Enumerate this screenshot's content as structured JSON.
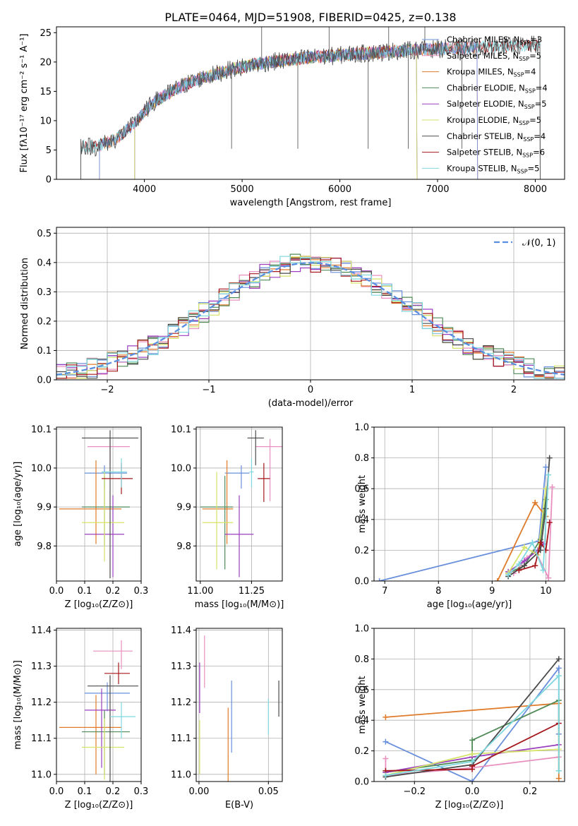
{
  "colors": {
    "chabrier_miles": "#6a8fdc",
    "salpeter_miles": "#e88fbf",
    "kroupa_miles": "#df7b2a",
    "chabrier_elodie": "#4f8a57",
    "salpeter_elodie": "#9b3fbf",
    "kroupa_elodie": "#d6e36a",
    "chabrier_stelib": "#4a4a4a",
    "salpeter_stelib": "#a5171c",
    "kroupa_stelib": "#7fd8df",
    "normal": "#5a8ee0"
  },
  "models": [
    {
      "key": "chabrier_miles",
      "label": "Chabrier MILES, N",
      "sub": "SSP",
      "eq": "=3"
    },
    {
      "key": "salpeter_miles",
      "label": "Salpeter MILES, N",
      "sub": "SSP",
      "eq": "=5"
    },
    {
      "key": "kroupa_miles",
      "label": "Kroupa MILES, N",
      "sub": "SSP",
      "eq": "=4"
    },
    {
      "key": "chabrier_elodie",
      "label": "Chabrier ELODIE, N",
      "sub": "SSP",
      "eq": "=4"
    },
    {
      "key": "salpeter_elodie",
      "label": "Salpeter ELODIE, N",
      "sub": "SSP",
      "eq": "=5"
    },
    {
      "key": "kroupa_elodie",
      "label": "Kroupa ELODIE, N",
      "sub": "SSP",
      "eq": "=5"
    },
    {
      "key": "chabrier_stelib",
      "label": "Chabrier STELIB, N",
      "sub": "SSP",
      "eq": "=4"
    },
    {
      "key": "salpeter_stelib",
      "label": "Salpeter STELIB, N",
      "sub": "SSP",
      "eq": "=6"
    },
    {
      "key": "kroupa_stelib",
      "label": "Kroupa STELIB, N",
      "sub": "SSP",
      "eq": "=5"
    }
  ],
  "chart_data": [
    {
      "id": "spectrum",
      "type": "line",
      "title": "PLATE=0464, MJD=51908, FIBERID=0425, z=0.138",
      "xlabel": "wavelength [Angstrom, rest frame]",
      "ylabel": "Flux [fλ10⁻¹⁷ erg cm⁻² s⁻¹ A⁻¹]",
      "xlim": [
        3100,
        8300
      ],
      "ylim": [
        0,
        26
      ],
      "xticks": [
        4000,
        5000,
        6000,
        7000,
        8000
      ],
      "yticks": [
        0,
        5,
        10,
        15,
        20,
        25
      ],
      "continuum": {
        "x": [
          3350,
          3500,
          3700,
          3900,
          4000,
          4100,
          4300,
          4500,
          4700,
          4900,
          5100,
          5300,
          5500,
          5700,
          5900,
          6100,
          6300,
          6500,
          6700,
          6900,
          7100,
          7300,
          7500,
          7700,
          7900,
          8050
        ],
        "y": [
          5.8,
          5.5,
          6.8,
          9.5,
          11.5,
          13.2,
          15.2,
          16.8,
          17.8,
          18.8,
          19.5,
          20.0,
          20.4,
          20.8,
          21.0,
          21.3,
          21.5,
          21.8,
          22.0,
          22.2,
          22.3,
          22.4,
          22.6,
          22.7,
          22.8,
          23.0
        ]
      },
      "model_ranges": {
        "chabrier_miles": [
          3540,
          7410
        ],
        "salpeter_miles": [
          3540,
          7410
        ],
        "kroupa_miles": [
          3540,
          7410
        ],
        "chabrier_elodie": [
          3900,
          6790
        ],
        "salpeter_elodie": [
          3900,
          6790
        ],
        "kroupa_elodie": [
          3900,
          6790
        ],
        "chabrier_stelib": [
          3350,
          8050
        ],
        "salpeter_stelib": [
          3350,
          8050
        ],
        "kroupa_stelib": [
          3350,
          8050
        ]
      },
      "legend": "upper right"
    },
    {
      "id": "residuals",
      "type": "histogram",
      "xlabel": "(data-model)/error",
      "ylabel": "Normed distribution",
      "xlim": [
        -2.5,
        2.5
      ],
      "ylim": [
        0,
        0.52
      ],
      "xticks": [
        -2,
        -1,
        0,
        1,
        2
      ],
      "yticks": [
        0.0,
        0.1,
        0.2,
        0.3,
        0.4,
        0.5
      ],
      "bin_width": 0.1,
      "legend_label": "𝒩(0, 1)",
      "legend": "upper right"
    },
    {
      "id": "age_vs_Z",
      "type": "errorbar",
      "xlabel": "Z [log₁₀(Z/Z⊙)]",
      "ylabel": "age  [log₁₀(age/yr)]",
      "xlim": [
        0.0,
        0.3
      ],
      "ylim": [
        9.71,
        10.105
      ],
      "xticks": [
        0.0,
        0.1,
        0.2,
        0.3
      ],
      "yticks": [
        9.8,
        9.9,
        10.0,
        10.1
      ],
      "points": [
        {
          "model": "chabrier_miles",
          "x": 0.17,
          "xerr": [
            0.07,
            0.08
          ],
          "y": 9.987,
          "yerr": [
            0.04,
            0.02
          ]
        },
        {
          "model": "salpeter_miles",
          "x": 0.19,
          "xerr": [
            0.08,
            0.07
          ],
          "y": 10.055,
          "yerr": [
            0.05,
            0.02
          ]
        },
        {
          "model": "kroupa_miles",
          "x": 0.14,
          "xerr": [
            0.13,
            0.09
          ],
          "y": 9.895,
          "yerr": [
            0.09,
            0.125
          ]
        },
        {
          "model": "chabrier_elodie",
          "x": 0.17,
          "xerr": [
            0.08,
            0.09
          ],
          "y": 9.9,
          "yerr": [
            0.1,
            0.08
          ]
        },
        {
          "model": "salpeter_elodie",
          "x": 0.2,
          "xerr": [
            0.1,
            0.04
          ],
          "y": 9.83,
          "yerr": [
            0.11,
            0.1
          ]
        },
        {
          "model": "kroupa_elodie",
          "x": 0.17,
          "xerr": [
            0.08,
            0.07
          ],
          "y": 9.86,
          "yerr": [
            0.1,
            0.13
          ]
        },
        {
          "model": "chabrier_stelib",
          "x": 0.19,
          "xerr": [
            0.1,
            0.1
          ],
          "y": 10.077,
          "yerr": [
            0.36,
            0.02
          ]
        },
        {
          "model": "salpeter_stelib",
          "x": 0.23,
          "xerr": [
            0.07,
            0.04
          ],
          "y": 9.973,
          "yerr": [
            0.04,
            0.04
          ]
        },
        {
          "model": "kroupa_stelib",
          "x": 0.23,
          "xerr": [
            0.07,
            0.02
          ],
          "y": 9.99,
          "yerr": [
            0.04,
            0.035
          ]
        }
      ]
    },
    {
      "id": "age_vs_mass",
      "type": "errorbar",
      "xlabel": "mass [log₁₀(M/M⊙)]",
      "ylabel": "",
      "xlim": [
        10.98,
        11.4
      ],
      "ylim": [
        9.71,
        10.105
      ],
      "xticks": [
        11.0,
        11.25
      ],
      "yticks": [
        9.8,
        9.9,
        10.0,
        10.1
      ],
      "points": [
        {
          "model": "chabrier_miles",
          "x": 11.2,
          "xerr": [
            0.08,
            0.04
          ],
          "y": 9.987,
          "yerr": [
            0.04,
            0.02
          ]
        },
        {
          "model": "salpeter_miles",
          "x": 11.34,
          "xerr": [
            0.07,
            0.07
          ],
          "y": 10.055,
          "yerr": [
            0.14,
            0.02
          ]
        },
        {
          "model": "kroupa_miles",
          "x": 11.13,
          "xerr": [
            0.12,
            0.03
          ],
          "y": 9.895,
          "yerr": [
            0.09,
            0.125
          ]
        },
        {
          "model": "chabrier_elodie",
          "x": 11.12,
          "xerr": [
            0.12,
            0.04
          ],
          "y": 9.9,
          "yerr": [
            0.16,
            0.08
          ]
        },
        {
          "model": "salpeter_elodie",
          "x": 11.19,
          "xerr": [
            0.07,
            0.07
          ],
          "y": 9.83,
          "yerr": [
            0.11,
            0.1
          ]
        },
        {
          "model": "kroupa_elodie",
          "x": 11.08,
          "xerr": [
            0.07,
            0.08
          ],
          "y": 9.86,
          "yerr": [
            0.12,
            0.13
          ]
        },
        {
          "model": "chabrier_stelib",
          "x": 11.27,
          "xerr": [
            0.04,
            0.04
          ],
          "y": 10.077,
          "yerr": [
            0.07,
            0.02
          ]
        },
        {
          "model": "salpeter_stelib",
          "x": 11.31,
          "xerr": [
            0.03,
            0.03
          ],
          "y": 9.973,
          "yerr": [
            0.06,
            0.04
          ]
        },
        {
          "model": "kroupa_stelib",
          "x": 11.25,
          "xerr": [
            0.01,
            0.01
          ],
          "y": 9.99,
          "yerr": [
            0.04,
            0.035
          ]
        }
      ]
    },
    {
      "id": "mass_weight_vs_age",
      "type": "line",
      "xlabel": "age  [log₁₀(age/yr)]",
      "ylabel": "mass weight",
      "xlim": [
        6.8,
        10.35
      ],
      "ylim": [
        0,
        1.0
      ],
      "xticks": [
        7,
        8,
        9,
        10
      ],
      "yticks": [
        0.0,
        0.2,
        0.4,
        0.6,
        0.8,
        1.0
      ],
      "series": [
        {
          "model": "chabrier_miles",
          "x": [
            6.9,
            9.87,
            10.0
          ],
          "y": [
            0.0,
            0.26,
            0.74
          ]
        },
        {
          "model": "salpeter_miles",
          "x": [
            9.4,
            9.65,
            9.8,
            10.05,
            10.12
          ],
          "y": [
            0.05,
            0.15,
            0.2,
            0.02,
            0.61
          ]
        },
        {
          "model": "kroupa_miles",
          "x": [
            9.1,
            9.8,
            10.0
          ],
          "y": [
            0.0,
            0.51,
            0.42
          ]
        },
        {
          "model": "chabrier_elodie",
          "x": [
            9.3,
            9.6,
            9.9,
            10.0
          ],
          "y": [
            0.05,
            0.1,
            0.27,
            0.53
          ]
        },
        {
          "model": "salpeter_elodie",
          "x": [
            9.3,
            9.6,
            9.85,
            9.95
          ],
          "y": [
            0.06,
            0.13,
            0.2,
            0.24
          ]
        },
        {
          "model": "kroupa_elodie",
          "x": [
            9.3,
            9.6,
            9.85,
            10.0
          ],
          "y": [
            0.05,
            0.22,
            0.17,
            0.6
          ]
        },
        {
          "model": "chabrier_stelib",
          "x": [
            9.3,
            9.6,
            9.9,
            10.0,
            10.07
          ],
          "y": [
            0.03,
            0.1,
            0.2,
            0.47,
            0.8
          ]
        },
        {
          "model": "salpeter_stelib",
          "x": [
            9.5,
            9.8,
            9.9,
            10.0,
            10.07
          ],
          "y": [
            0.07,
            0.1,
            0.25,
            0.2,
            0.38
          ]
        },
        {
          "model": "kroupa_stelib",
          "x": [
            9.3,
            9.5,
            9.75,
            9.95,
            10.05
          ],
          "y": [
            0.04,
            0.11,
            0.25,
            0.07,
            0.69
          ]
        }
      ]
    },
    {
      "id": "mass_vs_Z",
      "type": "errorbar",
      "xlabel": "Z [log₁₀(Z/Z⊙)]",
      "ylabel": "mass [log₁₀(M/M⊙)]",
      "xlim": [
        0.0,
        0.3
      ],
      "ylim": [
        10.98,
        11.405
      ],
      "xticks": [
        0.0,
        0.1,
        0.2,
        0.3
      ],
      "yticks": [
        11.0,
        11.1,
        11.2,
        11.3,
        11.4
      ],
      "points": [
        {
          "model": "chabrier_miles",
          "x": 0.18,
          "xerr": [
            0.08,
            0.08
          ],
          "y": 11.225,
          "yerr": [
            0.05,
            0.03
          ]
        },
        {
          "model": "salpeter_miles",
          "x": 0.23,
          "xerr": [
            0.1,
            0.04
          ],
          "y": 11.342,
          "yerr": [
            0.05,
            0.03
          ]
        },
        {
          "model": "kroupa_miles",
          "x": 0.14,
          "xerr": [
            0.13,
            0.09
          ],
          "y": 11.13,
          "yerr": [
            0.13,
            0.09
          ]
        },
        {
          "model": "chabrier_elodie",
          "x": 0.17,
          "xerr": [
            0.08,
            0.09
          ],
          "y": 11.118,
          "yerr": [
            0.12,
            0.06
          ]
        },
        {
          "model": "salpeter_elodie",
          "x": 0.16,
          "xerr": [
            0.06,
            0.05
          ],
          "y": 11.178,
          "yerr": [
            0.16,
            0.06
          ]
        },
        {
          "model": "kroupa_elodie",
          "x": 0.17,
          "xerr": [
            0.08,
            0.07
          ],
          "y": 11.075,
          "yerr": [
            0.09,
            0.08
          ]
        },
        {
          "model": "chabrier_stelib",
          "x": 0.19,
          "xerr": [
            0.08,
            0.1
          ],
          "y": 11.245,
          "yerr": [
            0.3,
            0.03
          ]
        },
        {
          "model": "salpeter_stelib",
          "x": 0.22,
          "xerr": [
            0.05,
            0.04
          ],
          "y": 11.28,
          "yerr": [
            0.03,
            0.03
          ]
        },
        {
          "model": "kroupa_stelib",
          "x": 0.23,
          "xerr": [
            0.04,
            0.05
          ],
          "y": 11.16,
          "yerr": [
            0.06,
            0.04
          ]
        }
      ]
    },
    {
      "id": "mass_vs_ebv",
      "type": "errorbar",
      "xlabel": "E(B-V)",
      "ylabel": "",
      "xlim": [
        -0.002,
        0.06
      ],
      "ylim": [
        10.98,
        11.405
      ],
      "xticks": [
        0.0,
        0.05
      ],
      "yticks": [
        11.0,
        11.1,
        11.2,
        11.3,
        11.4
      ],
      "points": [
        {
          "model": "salpeter_elodie",
          "x": 0.0005,
          "xerr": [
            0,
            0
          ],
          "y": 11.23,
          "yerr": [
            0.06,
            0.08
          ]
        },
        {
          "model": "salpeter_miles",
          "x": 0.004,
          "xerr": [
            0,
            0
          ],
          "y": 11.31,
          "yerr": [
            0.07,
            0.075
          ]
        },
        {
          "model": "kroupa_elodie",
          "x": 0.0005,
          "xerr": [
            0,
            0
          ],
          "y": 11.08,
          "yerr": [
            0.08,
            0.07
          ]
        },
        {
          "model": "kroupa_miles",
          "x": 0.021,
          "xerr": [
            0,
            0
          ],
          "y": 11.0,
          "yerr": [
            0.1,
            0.185
          ]
        },
        {
          "model": "chabrier_miles",
          "x": 0.0235,
          "xerr": [
            0,
            0
          ],
          "y": 11.16,
          "yerr": [
            0.1,
            0.1
          ]
        },
        {
          "model": "kroupa_stelib",
          "x": 0.05,
          "xerr": [
            0,
            0
          ],
          "y": 11.16,
          "yerr": [
            0.05,
            0.05
          ]
        },
        {
          "model": "chabrier_stelib",
          "x": 0.0575,
          "xerr": [
            0,
            0
          ],
          "y": 11.21,
          "yerr": [
            0.05,
            0.05
          ]
        }
      ]
    },
    {
      "id": "mass_weight_vs_Z",
      "type": "line",
      "xlabel": "Z [log₁₀(Z/Z⊙)]",
      "ylabel": "mass weight",
      "xlim": [
        -0.34,
        0.32
      ],
      "ylim": [
        0,
        1.0
      ],
      "xticks": [
        -0.2,
        0.0,
        0.2
      ],
      "yticks": [
        0.0,
        0.2,
        0.4,
        0.6,
        0.8,
        1.0
      ],
      "series": [
        {
          "model": "chabrier_miles",
          "x": [
            -0.3,
            0.0,
            0.3,
            0.3
          ],
          "y": [
            0.26,
            0.0,
            0.74,
            0.31
          ]
        },
        {
          "model": "salpeter_miles",
          "x": [
            -0.3,
            -0.3,
            0.0,
            0.3
          ],
          "y": [
            0.15,
            0.04,
            0.09,
            0.16
          ]
        },
        {
          "model": "kroupa_miles",
          "x": [
            -0.3,
            0.3,
            0.3
          ],
          "y": [
            0.42,
            0.51,
            0.02
          ]
        },
        {
          "model": "chabrier_elodie",
          "x": [
            -0.3,
            0.0,
            0.0,
            0.3,
            0.3
          ],
          "y": [
            0.06,
            0.14,
            0.27,
            0.53,
            0.07
          ]
        },
        {
          "model": "salpeter_elodie",
          "x": [
            -0.3,
            0.0,
            0.3
          ],
          "y": [
            0.06,
            0.16,
            0.24
          ]
        },
        {
          "model": "kroupa_elodie",
          "x": [
            -0.3,
            0.0,
            0.3
          ],
          "y": [
            0.04,
            0.18,
            0.21
          ]
        },
        {
          "model": "chabrier_stelib",
          "x": [
            -0.3,
            0.0,
            0.3
          ],
          "y": [
            0.03,
            0.11,
            0.8
          ]
        },
        {
          "model": "salpeter_stelib",
          "x": [
            -0.3,
            0.0,
            0.0,
            0.3
          ],
          "y": [
            0.07,
            0.08,
            0.1,
            0.38
          ]
        },
        {
          "model": "kroupa_stelib",
          "x": [
            -0.3,
            0.0,
            0.3,
            0.3
          ],
          "y": [
            0.04,
            0.13,
            0.69,
            0.07
          ]
        }
      ]
    }
  ]
}
